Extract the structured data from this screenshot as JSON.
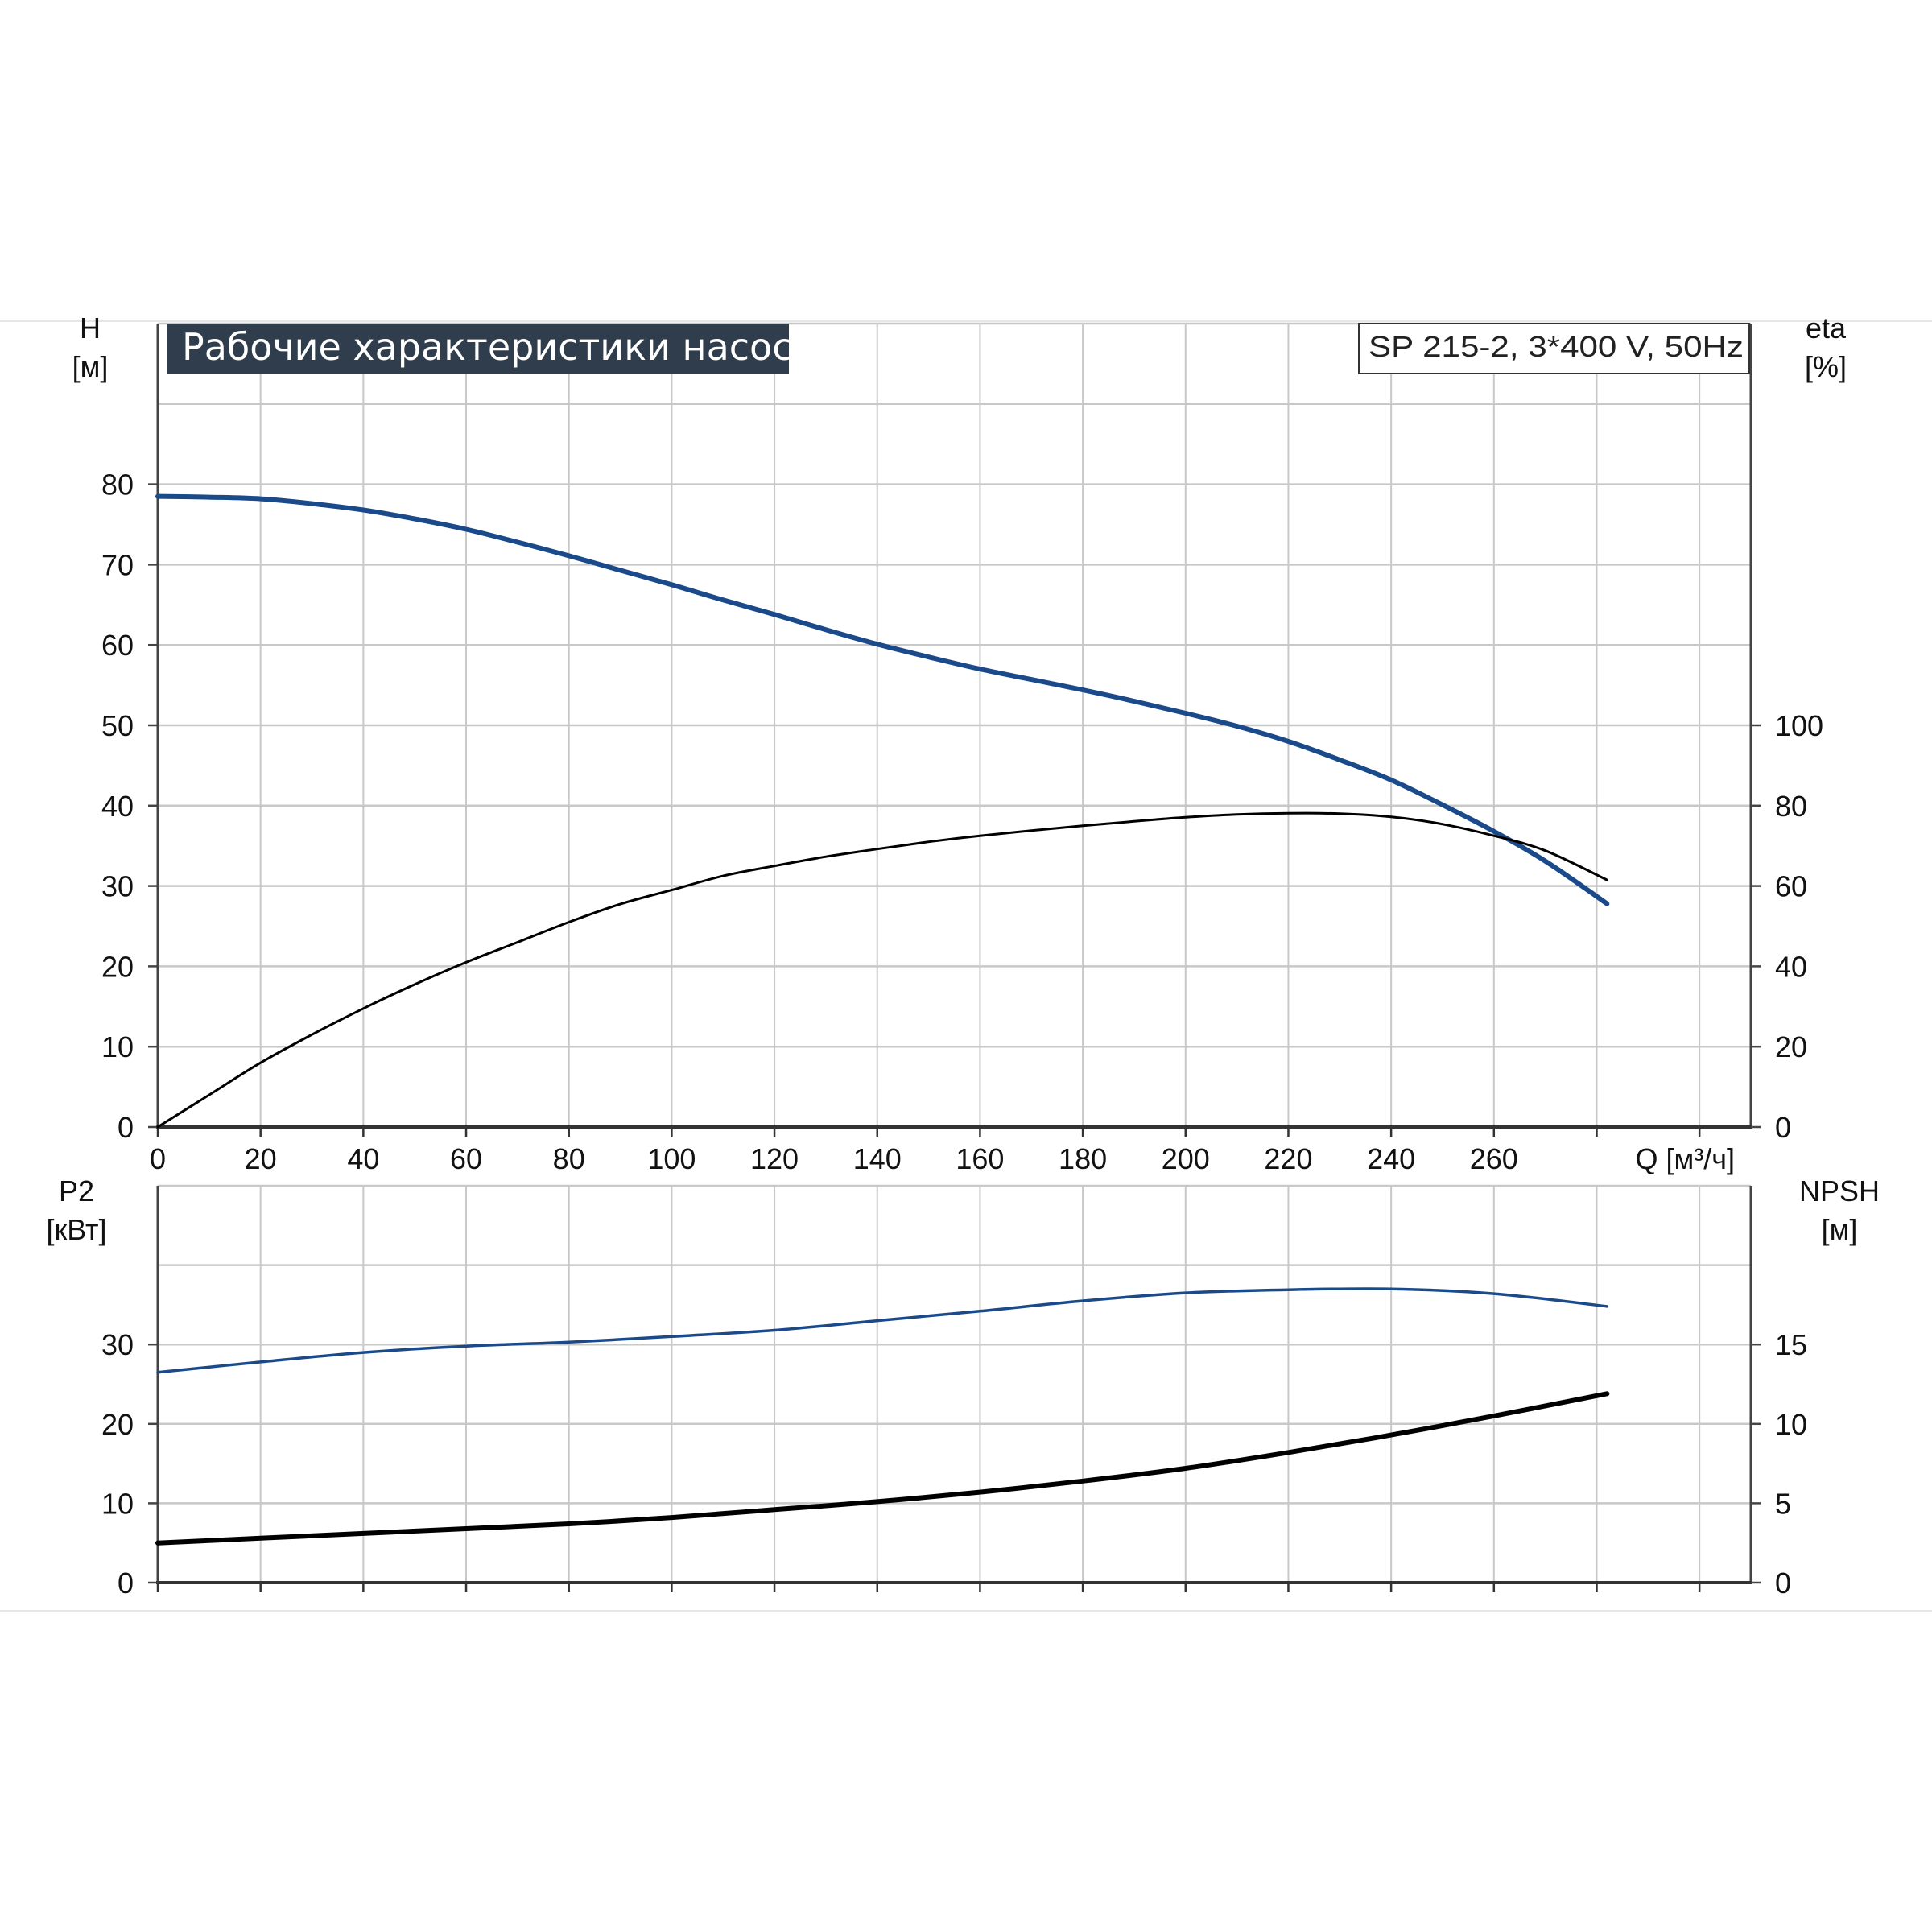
{
  "title": "Рабочие характеристики насоса",
  "model": "SP 215-2, 3*400 V, 50Hz",
  "colors": {
    "blue": "#1a4a8a",
    "black": "#000000",
    "grid": "#c8c8c8",
    "title_bg": "#2f3d4d"
  },
  "chart_data": [
    {
      "type": "line",
      "panel": "top",
      "xlabel": "Q [м³/ч]",
      "x_ticks": [
        0,
        20,
        40,
        60,
        80,
        100,
        120,
        140,
        160,
        180,
        200,
        220,
        240,
        260
      ],
      "xlim": [
        0,
        310
      ],
      "y_left": {
        "label_line1": "H",
        "label_line2": "[м]",
        "ticks": [
          0,
          10,
          20,
          30,
          40,
          50,
          60,
          70,
          80
        ],
        "ylim": [
          0,
          100
        ]
      },
      "y_right": {
        "label_line1": "eta",
        "label_line2": "[%]",
        "ticks": [
          0,
          20,
          40,
          60,
          80,
          100
        ],
        "ylim": [
          0,
          200
        ]
      },
      "grid": true,
      "series": [
        {
          "axis": "left",
          "color": "blue",
          "width": "thick",
          "x": [
            0,
            10,
            20,
            30,
            40,
            50,
            60,
            70,
            80,
            90,
            100,
            110,
            120,
            130,
            140,
            150,
            160,
            170,
            180,
            190,
            200,
            210,
            220,
            230,
            240,
            250,
            260,
            270,
            282
          ],
          "y": [
            78.5,
            78.4,
            78.2,
            77.6,
            76.8,
            75.7,
            74.4,
            72.8,
            71.1,
            69.3,
            67.5,
            65.6,
            63.8,
            61.9,
            60.1,
            58.5,
            57.0,
            55.7,
            54.4,
            53.0,
            51.5,
            49.9,
            48.0,
            45.7,
            43.2,
            40.1,
            36.8,
            33.1,
            27.8
          ]
        },
        {
          "axis": "right",
          "color": "black",
          "width": "thin",
          "x": [
            0,
            10,
            20,
            30,
            40,
            50,
            60,
            70,
            80,
            90,
            100,
            110,
            120,
            130,
            140,
            150,
            160,
            170,
            180,
            190,
            200,
            210,
            220,
            230,
            240,
            250,
            260,
            270,
            282
          ],
          "y": [
            0,
            8,
            16,
            23,
            29.5,
            35.5,
            41,
            46,
            51,
            55.5,
            59,
            62.5,
            65,
            67.3,
            69.2,
            71,
            72.5,
            73.8,
            75,
            76.1,
            77.1,
            77.8,
            78.1,
            78.0,
            77.2,
            75.4,
            72.5,
            68.8,
            61.5
          ]
        }
      ]
    },
    {
      "type": "line",
      "panel": "bottom",
      "x_ticks": [
        0,
        20,
        40,
        60,
        80,
        100,
        120,
        140,
        160,
        180,
        200,
        220,
        240,
        260
      ],
      "xlim": [
        0,
        310
      ],
      "y_left": {
        "label_line1": "P2",
        "label_line2": "[кВт]",
        "ticks": [
          0,
          10,
          20,
          30
        ],
        "ylim": [
          0,
          50
        ]
      },
      "y_right": {
        "label_line1": "NPSH",
        "label_line2": "[м]",
        "ticks": [
          0,
          5,
          10,
          15
        ],
        "ylim": [
          0,
          25
        ]
      },
      "grid": true,
      "series": [
        {
          "axis": "left",
          "color": "blue",
          "width": "medium",
          "x": [
            0,
            20,
            40,
            60,
            80,
            100,
            120,
            140,
            160,
            180,
            200,
            220,
            240,
            260,
            282
          ],
          "y": [
            26.5,
            27.8,
            29.0,
            29.8,
            30.3,
            31.0,
            31.8,
            33.0,
            34.2,
            35.5,
            36.5,
            36.9,
            37.0,
            36.4,
            34.8
          ]
        },
        {
          "axis": "right",
          "color": "black",
          "width": "thick",
          "x": [
            0,
            20,
            40,
            60,
            80,
            100,
            120,
            140,
            160,
            180,
            200,
            220,
            240,
            260,
            282
          ],
          "y": [
            2.5,
            2.8,
            3.1,
            3.4,
            3.7,
            4.1,
            4.6,
            5.1,
            5.7,
            6.4,
            7.2,
            8.2,
            9.3,
            10.5,
            11.9
          ]
        }
      ]
    }
  ]
}
